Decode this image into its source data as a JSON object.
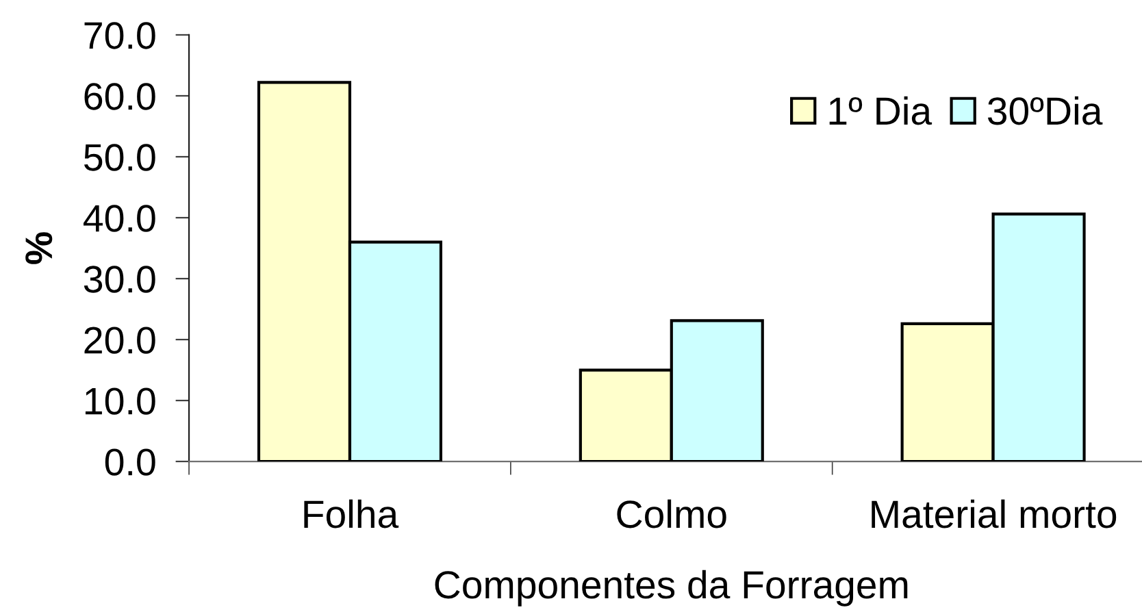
{
  "chart_data": {
    "type": "bar",
    "xlabel": "Componentes da Forragem",
    "ylabel": "%",
    "categories": [
      "Folha",
      "Colmo",
      "Material morto"
    ],
    "series": [
      {
        "name": "1º Dia",
        "color": "#ffffcc",
        "values": [
          62.2,
          15.0,
          22.6
        ]
      },
      {
        "name": "30ºDia",
        "color": "#ccffff",
        "values": [
          36.0,
          23.1,
          40.6
        ]
      }
    ],
    "ylim": [
      0,
      70
    ],
    "yticks": [
      {
        "value": 0,
        "label": "0.0"
      },
      {
        "value": 10,
        "label": "10.0"
      },
      {
        "value": 20,
        "label": "20.0"
      },
      {
        "value": 30,
        "label": "30.0"
      },
      {
        "value": 40,
        "label": "40.0"
      },
      {
        "value": 50,
        "label": "50.0"
      },
      {
        "value": 60,
        "label": "60.0"
      },
      {
        "value": 70,
        "label": "70.0"
      }
    ],
    "grid": false,
    "legend": "top right"
  }
}
